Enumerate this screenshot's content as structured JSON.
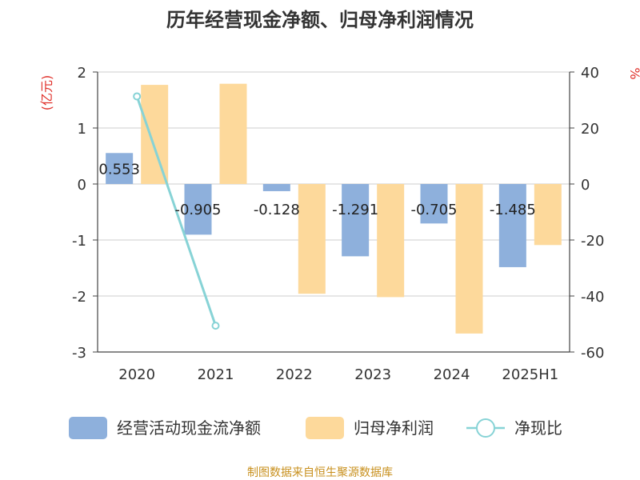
{
  "chart_data": {
    "type": "bar",
    "title": "历年经营现金净额、归母净利润情况",
    "categories": [
      "2020",
      "2021",
      "2022",
      "2023",
      "2024",
      "2025H1"
    ],
    "left_axis": {
      "unit": "(亿元)",
      "ylim": [
        -3,
        2
      ],
      "ticks": [
        2,
        1,
        0,
        -1,
        -2,
        -3
      ]
    },
    "right_axis": {
      "unit": "%",
      "ylim": [
        -60,
        40
      ],
      "ticks": [
        40,
        20,
        0,
        -20,
        -40,
        -60
      ]
    },
    "series": [
      {
        "name": "经营活动现金流净额",
        "type": "bar",
        "axis": "left",
        "color": "#8eb0dc",
        "values": [
          0.553,
          -0.905,
          -0.128,
          -1.291,
          -0.705,
          -1.485
        ],
        "labels": [
          "0.553",
          "-0.905",
          "-0.128",
          "-1.291",
          "-0.705",
          "-1.485"
        ]
      },
      {
        "name": "归母净利润",
        "type": "bar",
        "axis": "left",
        "color": "#fdd99b",
        "values": [
          1.77,
          1.79,
          -1.96,
          -2.02,
          -2.67,
          -1.09
        ]
      },
      {
        "name": "净现比",
        "type": "line",
        "axis": "right",
        "color": "#87d3d6",
        "values": [
          31.3,
          -50.6,
          null,
          null,
          null,
          null
        ]
      }
    ],
    "grid": true,
    "legend_position": "bottom",
    "source": "制图数据来自恒生聚源数据库"
  }
}
